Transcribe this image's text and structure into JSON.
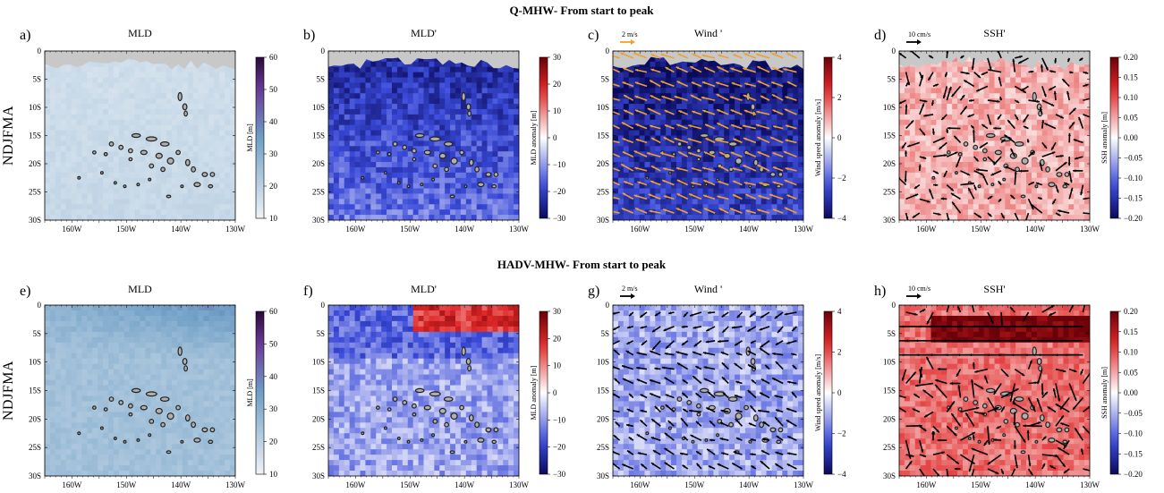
{
  "chart_data": [
    {
      "type": "heatmap",
      "panel_label": "a)",
      "title": "MLD",
      "xticks": [
        "160W",
        "150W",
        "140W",
        "130W"
      ],
      "yticks": [
        "0",
        "5S",
        "10S",
        "15S",
        "20S",
        "25S",
        "30S"
      ],
      "xlim": [
        "165W",
        "130W"
      ],
      "ylim": [
        "0",
        "30S"
      ],
      "colorbar": {
        "label": "MLD [m]",
        "ticks": [
          "60",
          "50",
          "40",
          "30",
          "20",
          "10"
        ],
        "range": [
          10,
          60
        ],
        "colors": [
          "#eef2f6",
          "#2a0a3a"
        ]
      },
      "field": "shallow MLD, light blue-grey nearly uniform"
    },
    {
      "type": "heatmap",
      "panel_label": "b)",
      "title": "MLD'",
      "xticks": [
        "160W",
        "150W",
        "140W",
        "130W"
      ],
      "yticks": [
        "0",
        "5S",
        "10S",
        "15S",
        "20S",
        "25S",
        "30S"
      ],
      "colorbar": {
        "label": "MLD anomaly [m]",
        "ticks": [
          "30",
          "20",
          "10",
          "0",
          "−10",
          "−20",
          "−30"
        ],
        "range": [
          -30,
          30
        ],
        "colors": [
          "#0a0a5a",
          "#ffffff",
          "#6a0008"
        ]
      },
      "field": "negative MLD anomaly (blue), strongest in north"
    },
    {
      "type": "heatmap",
      "panel_label": "c)",
      "title": "Wind '",
      "vector_scale": "2 m/s",
      "vector_color": "#f0a030",
      "xticks": [
        "160W",
        "150W",
        "140W",
        "130W"
      ],
      "yticks": [
        "0",
        "5S",
        "10S",
        "15S",
        "20S",
        "25S",
        "30S"
      ],
      "colorbar": {
        "label": "Wind speed anomaly [m/s]",
        "ticks": [
          "4",
          "2",
          "0",
          "−2",
          "−4"
        ],
        "range": [
          -5,
          5
        ],
        "colors": [
          "#0a0a5a",
          "#ffffff",
          "#6a0008"
        ]
      },
      "field": "negative wind speed anomaly (deep blue), orange vectors pointing west-southwest"
    },
    {
      "type": "heatmap",
      "panel_label": "d)",
      "title": "SSH'",
      "vector_scale": "10 cm/s",
      "vector_color": "#000000",
      "xticks": [
        "160W",
        "150W",
        "140W",
        "130W"
      ],
      "yticks": [
        "0",
        "5S",
        "10S",
        "15S",
        "20S",
        "25S",
        "30S"
      ],
      "colorbar": {
        "label": "SSH anomaly [m]",
        "ticks": [
          "0.20",
          "0.15",
          "0.10",
          "0.05",
          "0.00",
          "−0.05",
          "−0.10",
          "−0.15",
          "−0.20"
        ],
        "range": [
          -0.2,
          0.2
        ],
        "colors": [
          "#0a0a5a",
          "#ffffff",
          "#6a0008"
        ]
      },
      "field": "positive SSH anomaly (light red) with black current vectors"
    },
    {
      "type": "heatmap",
      "panel_label": "e)",
      "title": "MLD",
      "xticks": [
        "160W",
        "150W",
        "140W",
        "130W"
      ],
      "yticks": [
        "0",
        "5S",
        "10S",
        "15S",
        "20S",
        "25S",
        "30S"
      ],
      "colorbar": {
        "label": "MLD [m]",
        "ticks": [
          "60",
          "50",
          "40",
          "30",
          "20",
          "10"
        ],
        "range": [
          10,
          60
        ],
        "colors": [
          "#eef2f6",
          "#2a0a3a"
        ]
      },
      "field": "deeper MLD in north-east (purple), blue elsewhere"
    },
    {
      "type": "heatmap",
      "panel_label": "f)",
      "title": "MLD'",
      "xticks": [
        "160W",
        "150W",
        "140W",
        "130W"
      ],
      "yticks": [
        "0",
        "5S",
        "10S",
        "15S",
        "20S",
        "25S",
        "30S"
      ],
      "colorbar": {
        "label": "MLD anomaly [m]",
        "ticks": [
          "30",
          "20",
          "10",
          "0",
          "−10",
          "−20",
          "−30"
        ],
        "range": [
          -30,
          30
        ],
        "colors": [
          "#0a0a5a",
          "#ffffff",
          "#6a0008"
        ]
      },
      "field": "positive anomaly (red) at north-east edge, negative (blue) elsewhere"
    },
    {
      "type": "heatmap",
      "panel_label": "g)",
      "title": "Wind '",
      "vector_scale": "2 m/s",
      "vector_color": "#000000",
      "xticks": [
        "160W",
        "150W",
        "140W",
        "130W"
      ],
      "yticks": [
        "0",
        "5S",
        "10S",
        "15S",
        "20S",
        "25S",
        "30S"
      ],
      "colorbar": {
        "label": "Wind speed anomaly [m/s]",
        "ticks": [
          "4",
          "2",
          "0",
          "−2",
          "−4"
        ],
        "range": [
          -5,
          5
        ],
        "colors": [
          "#0a0a5a",
          "#ffffff",
          "#6a0008"
        ]
      },
      "field": "weak negative wind anomaly (light blue) with black vectors"
    },
    {
      "type": "heatmap",
      "panel_label": "h)",
      "title": "SSH'",
      "vector_scale": "10 cm/s",
      "vector_color": "#000000",
      "xticks": [
        "160W",
        "150W",
        "140W",
        "130W"
      ],
      "yticks": [
        "0",
        "5S",
        "10S",
        "15S",
        "20S",
        "25S",
        "30S"
      ],
      "colorbar": {
        "label": "SSH anomaly [m]",
        "ticks": [
          "0.20",
          "0.15",
          "0.10",
          "0.05",
          "0.00",
          "−0.05",
          "−0.10",
          "−0.15",
          "−0.20"
        ],
        "range": [
          -0.2,
          0.2
        ],
        "colors": [
          "#0a0a5a",
          "#ffffff",
          "#6a0008"
        ]
      },
      "field": "strong positive SSH anomaly (red), strongest in north band, black vectors"
    }
  ],
  "rows": [
    {
      "title": "Q-MHW- From start to peak",
      "side_label": "NDJFMA"
    },
    {
      "title": "HADV-MHW- From start to peak",
      "side_label": "NDJFMA"
    }
  ],
  "colors": {
    "land": "#c8c8c8",
    "island_outline": "#222222",
    "island_fill": "#b0b0b0"
  }
}
